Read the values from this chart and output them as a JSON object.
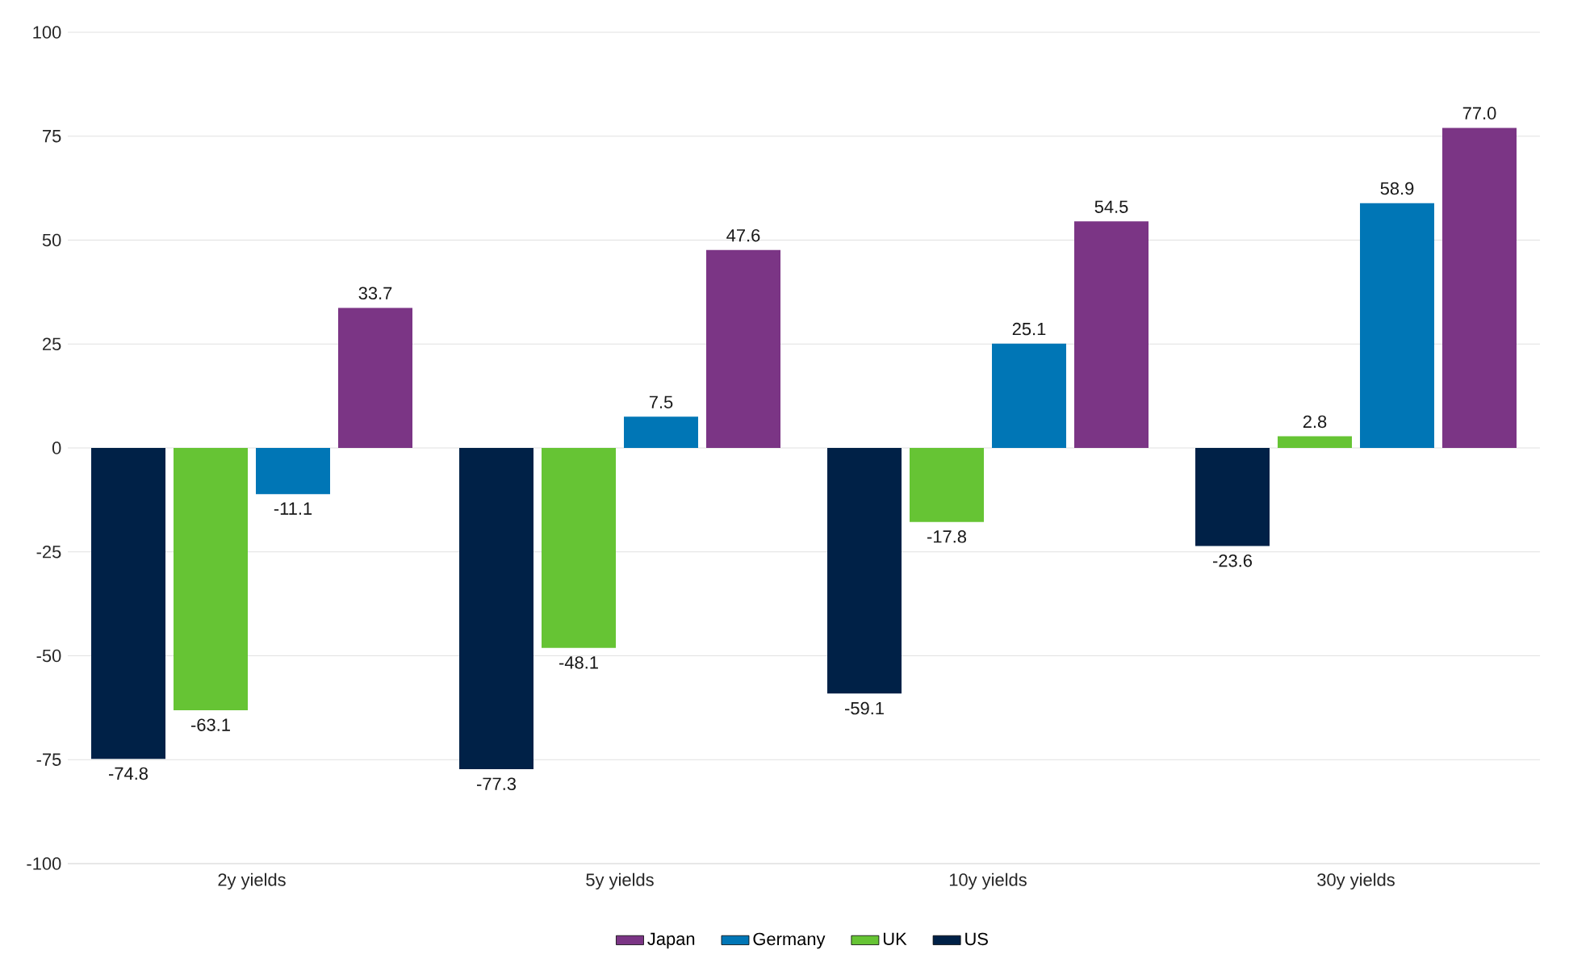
{
  "chart_data": {
    "type": "bar",
    "categories": [
      "2y yields",
      "5y yields",
      "10y yields",
      "30y yields"
    ],
    "series": [
      {
        "name": "US",
        "color": "#002147",
        "values": [
          -74.8,
          -77.3,
          -59.1,
          -23.6
        ],
        "value_labels": [
          "-74.8",
          "-77.3",
          "-59.1",
          "-23.6"
        ]
      },
      {
        "name": "UK",
        "color": "#66c434",
        "values": [
          -63.1,
          -48.1,
          -17.8,
          2.8
        ],
        "value_labels": [
          "-63.1",
          "-48.1",
          "-17.8",
          "2.8"
        ]
      },
      {
        "name": "Germany",
        "color": "#0076b6",
        "values": [
          -11.1,
          7.5,
          25.1,
          58.9
        ],
        "value_labels": [
          "-11.1",
          "7.5",
          "25.1",
          "58.9"
        ]
      },
      {
        "name": "Japan",
        "color": "#7b3585",
        "values": [
          33.7,
          47.6,
          54.5,
          77.0
        ],
        "value_labels": [
          "33.7",
          "47.6",
          "54.5",
          "77.0"
        ]
      }
    ],
    "ylim": [
      -100,
      100
    ],
    "yticks": [
      -100,
      -75,
      -50,
      -25,
      0,
      25,
      50,
      75,
      100
    ],
    "grid": "y",
    "legend": "bottom"
  }
}
